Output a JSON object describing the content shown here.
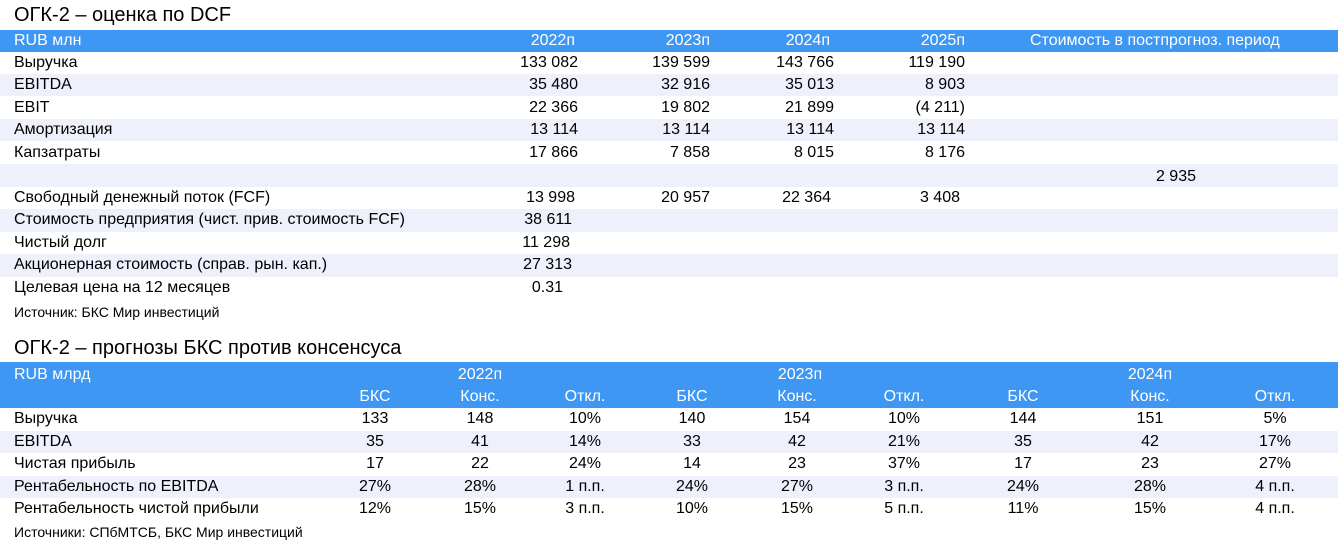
{
  "dcf": {
    "title": "ОГК-2 – оценка по DCF",
    "header": {
      "unit": "RUB млн",
      "years": [
        "2022п",
        "2023п",
        "2024п",
        "2025п"
      ],
      "terminal": "Стоимость в постпрогноз. период"
    },
    "rows": [
      {
        "label": "Выручка",
        "values": [
          "133 082",
          "139 599",
          "143 766",
          "119 190"
        ],
        "terminal": ""
      },
      {
        "label": "EBITDA",
        "values": [
          "35 480",
          "32 916",
          "35 013",
          "8 903"
        ],
        "terminal": ""
      },
      {
        "label": "EBIT",
        "values": [
          "22 366",
          "19 802",
          "21 899",
          "(4 211)"
        ],
        "terminal": ""
      },
      {
        "label": "Амортизация",
        "values": [
          "13 114",
          "13 114",
          "13 114",
          "13 114"
        ],
        "terminal": ""
      },
      {
        "label": "Капзатраты",
        "values": [
          "17 866",
          "7 858",
          "8 015",
          "8 176"
        ],
        "terminal": ""
      },
      {
        "label": "",
        "values": [
          "",
          "",
          "",
          ""
        ],
        "terminal": "2 935"
      },
      {
        "label": "Свободный денежный поток (FCF)",
        "values": [
          "13 998",
          "20 957",
          "22 364",
          "3 408"
        ],
        "terminal": ""
      },
      {
        "label": "Стоимость предприятия (чист. прив. стоимость FCF)",
        "values": [
          "38 611",
          "",
          "",
          ""
        ],
        "terminal": ""
      },
      {
        "label": "Чистый долг",
        "values": [
          "11 298",
          "",
          "",
          ""
        ],
        "terminal": ""
      },
      {
        "label": "Акционерная стоимость (справ. рын. кап.)",
        "values": [
          "27 313",
          "",
          "",
          ""
        ],
        "terminal": ""
      },
      {
        "label": "Целевая цена на 12 месяцев",
        "values": [
          "0.31",
          "",
          "",
          ""
        ],
        "terminal": ""
      }
    ],
    "source": "Источник: БКС Мир инвестиций"
  },
  "consensus": {
    "title": "ОГК-2 – прогнозы БКС против консенсуса",
    "header": {
      "unit": "RUB млрд",
      "years": [
        "2022п",
        "2023п",
        "2024п"
      ],
      "subcols": [
        "БКС",
        "Конс.",
        "Откл.",
        "БКС",
        "Конс.",
        "Откл.",
        "БКС",
        "Конс.",
        "Откл."
      ]
    },
    "rows": [
      {
        "label": "Выручка",
        "values": [
          "133",
          "148",
          "10%",
          "140",
          "154",
          "10%",
          "144",
          "151",
          "5%"
        ]
      },
      {
        "label": "EBITDA",
        "values": [
          "35",
          "41",
          "14%",
          "33",
          "42",
          "21%",
          "35",
          "42",
          "17%"
        ]
      },
      {
        "label": "Чистая прибыль",
        "values": [
          "17",
          "22",
          "24%",
          "14",
          "23",
          "37%",
          "17",
          "23",
          "27%"
        ]
      },
      {
        "label": "Рентабельность по EBITDA",
        "values": [
          "27%",
          "28%",
          "1 п.п.",
          "24%",
          "27%",
          "3 п.п.",
          "24%",
          "28%",
          "4 п.п."
        ]
      },
      {
        "label": "Рентабельность чистой прибыли",
        "values": [
          "12%",
          "15%",
          "3 п.п.",
          "10%",
          "15%",
          "5 п.п.",
          "11%",
          "15%",
          "4 п.п."
        ]
      }
    ],
    "source": "Источники: СПбМТСБ, БКС Мир инвестиций"
  },
  "colors": {
    "header_bg": "#3e97f3",
    "header_text": "#ffffff",
    "stripe_bg": "#eef1fb"
  }
}
